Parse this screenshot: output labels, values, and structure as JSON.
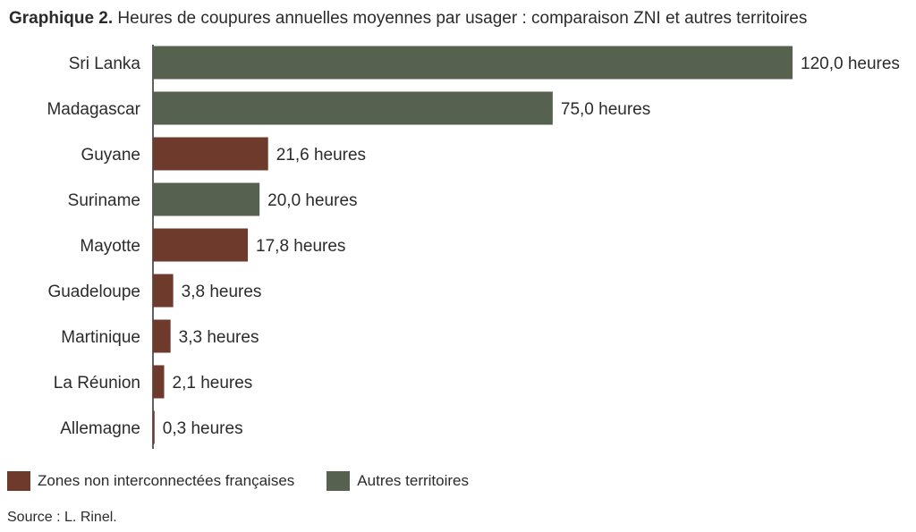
{
  "title": {
    "lead": "Graphique 2.",
    "text": "Heures de coupures annuelles moyennes par usager : comparaison ZNI et autres territoires"
  },
  "legend": [
    {
      "label": "Zones non interconnectées françaises",
      "group": "zni",
      "color": "#6e3a2c"
    },
    {
      "label": "Autres territoires",
      "group": "other",
      "color": "#566150"
    }
  ],
  "source": "Source : L. Rinel.",
  "colors": {
    "zni": "#6e3a2c",
    "other": "#566150",
    "axis": "#2b2b2b"
  },
  "chart_data": {
    "type": "bar",
    "orientation": "horizontal",
    "categories": [
      "Sri Lanka",
      "Madagascar",
      "Guyane",
      "Suriname",
      "Mayotte",
      "Guadeloupe",
      "Martinique",
      "La Réunion",
      "Allemagne"
    ],
    "values": [
      120.0,
      75.0,
      21.6,
      20.0,
      17.8,
      3.8,
      3.3,
      2.1,
      0.3
    ],
    "groups": [
      "other",
      "other",
      "zni",
      "other",
      "zni",
      "zni",
      "zni",
      "zni",
      "zni"
    ],
    "data_labels": [
      "120,0 heures",
      "75,0 heures",
      "21,6 heures",
      "20,0 heures",
      "17,8 heures",
      "3,8 heures",
      "3,3 heures",
      "2,1 heures",
      "0,3 heures"
    ],
    "xlim": [
      0,
      120
    ],
    "grid": false,
    "legend_position": "bottom-left"
  }
}
